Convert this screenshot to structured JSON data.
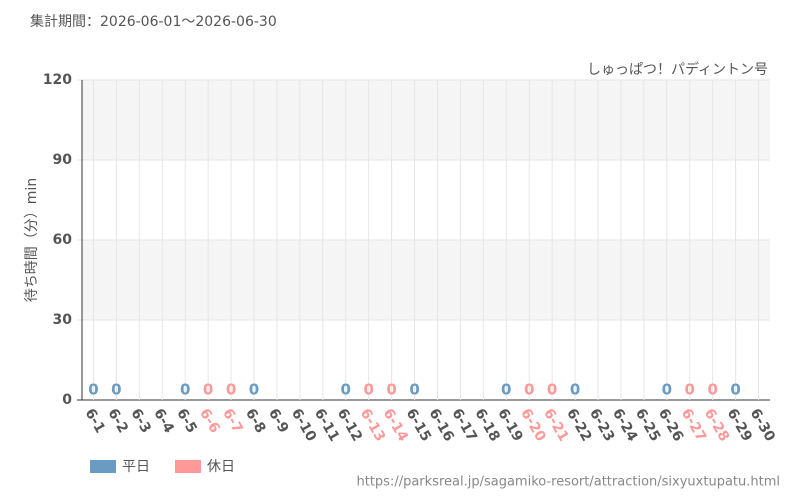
{
  "chart_data": {
    "type": "bar",
    "title": "集計期間：2026-06-01～2026-06-30",
    "subtitle": "しゅっぱつ！パディントン号",
    "y_label": "待ち時間（分）min",
    "footer": "https://parksreal.jp/sagamiko-resort/attraction/sixyuxtupatu.html",
    "categories": [
      "6-1",
      "6-2",
      "6-3",
      "6-4",
      "6-5",
      "6-6",
      "6-7",
      "6-8",
      "6-9",
      "6-10",
      "6-11",
      "6-12",
      "6-13",
      "6-14",
      "6-15",
      "6-16",
      "6-17",
      "6-18",
      "6-19",
      "6-20",
      "6-21",
      "6-22",
      "6-23",
      "6-24",
      "6-25",
      "6-26",
      "6-27",
      "6-28",
      "6-29",
      "6-30"
    ],
    "series": [
      {
        "name": "平日",
        "color": "#6a9bc3",
        "values": [
          0,
          0,
          null,
          null,
          0,
          null,
          null,
          0,
          null,
          null,
          null,
          0,
          null,
          null,
          0,
          null,
          null,
          null,
          0,
          null,
          null,
          0,
          null,
          null,
          null,
          0,
          null,
          null,
          0,
          null
        ]
      },
      {
        "name": "休日",
        "color": "#ff9999",
        "values": [
          null,
          null,
          null,
          null,
          null,
          0,
          0,
          null,
          null,
          null,
          null,
          null,
          0,
          0,
          null,
          null,
          null,
          null,
          null,
          0,
          0,
          null,
          null,
          null,
          null,
          null,
          0,
          0,
          null,
          null
        ]
      }
    ],
    "ylim": [
      0,
      120
    ],
    "yticks": [
      0,
      30,
      60,
      90,
      120
    ],
    "grid": true
  }
}
